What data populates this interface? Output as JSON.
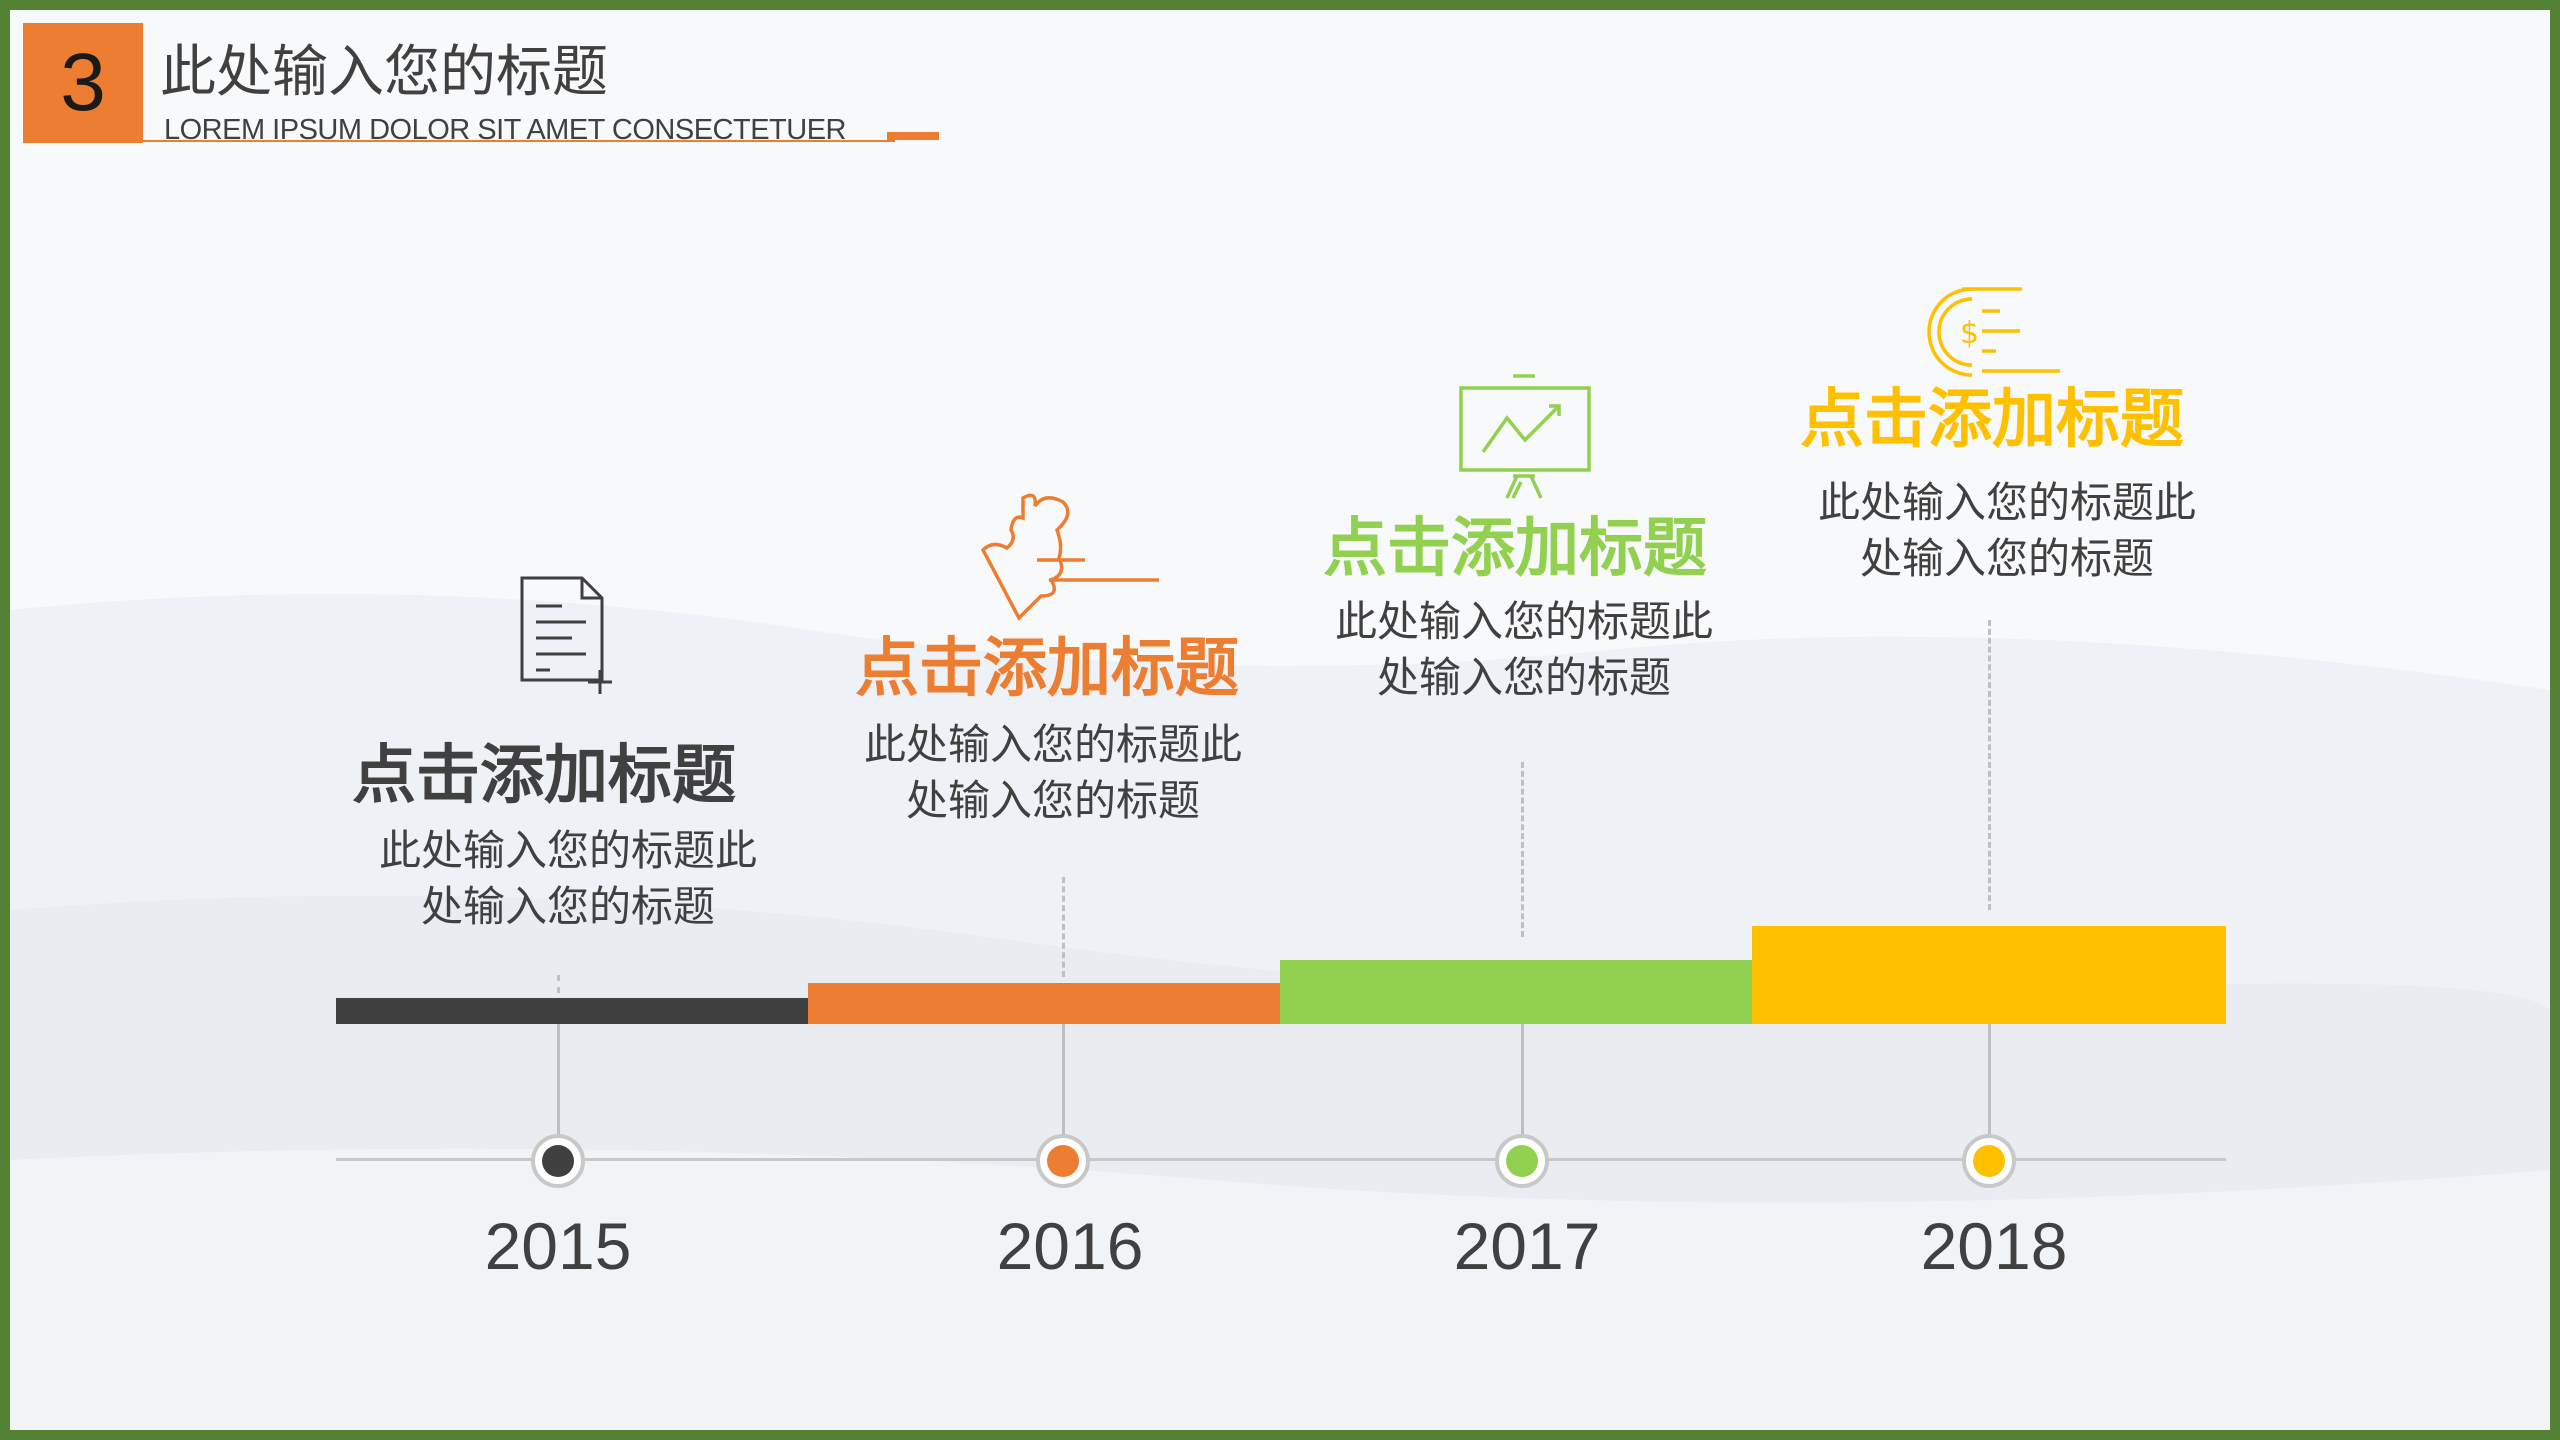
{
  "header": {
    "number": "3",
    "title": "此处输入您的标题",
    "subtitle": "LOREM IPSUM DOLOR SIT AMET CONSECTETUER"
  },
  "colors": {
    "border": "#548235",
    "accent": "#ED7D31",
    "dark": "#404040",
    "orange": "#ED7D31",
    "green": "#92D050",
    "yellow": "#FFC000"
  },
  "timeline": [
    {
      "year": "2015",
      "heading": "点击添加标题",
      "desc_line1": "此处输入您的标题此",
      "desc_line2": "处输入您的标题",
      "color": "#404040",
      "icon": "document-add-icon"
    },
    {
      "year": "2016",
      "heading": "点击添加标题",
      "desc_line1": "此处输入您的标题此",
      "desc_line2": "处输入您的标题",
      "color": "#ED7D31",
      "icon": "puzzle-hand-icon"
    },
    {
      "year": "2017",
      "heading": "点击添加标题",
      "desc_line1": "此处输入您的标题此",
      "desc_line2": "处输入您的标题",
      "color": "#92D050",
      "icon": "presentation-chart-icon"
    },
    {
      "year": "2018",
      "heading": "点击添加标题",
      "desc_line1": "此处输入您的标题此",
      "desc_line2": "处输入您的标题",
      "color": "#FFC000",
      "icon": "dollar-coin-icon"
    }
  ]
}
